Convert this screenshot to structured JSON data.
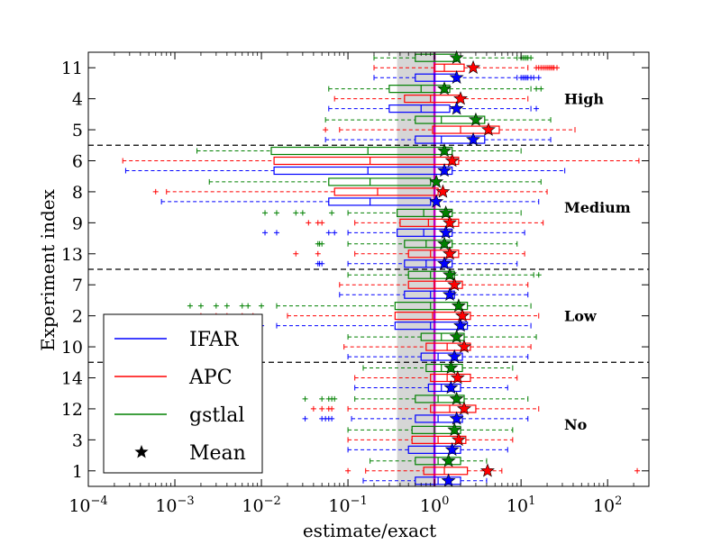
{
  "chart_data": {
    "type": "boxplot",
    "orientation": "horizontal",
    "xscale": "log",
    "xlim": [
      0.0001,
      300
    ],
    "xticks": [
      {
        "value": 0.0001,
        "base": "10",
        "exp": "−4"
      },
      {
        "value": 0.001,
        "base": "10",
        "exp": "−3"
      },
      {
        "value": 0.01,
        "base": "10",
        "exp": "−2"
      },
      {
        "value": 0.1,
        "base": "10",
        "exp": "−1"
      },
      {
        "value": 1,
        "base": "10",
        "exp": "0"
      },
      {
        "value": 10,
        "base": "10",
        "exp": "1"
      },
      {
        "value": 100,
        "base": "10",
        "exp": "2"
      }
    ],
    "xlabel": "estimate/exact",
    "ylabel": "Experiment index",
    "reference_line": {
      "x": 1,
      "color": "#c000c0"
    },
    "shaded_band": {
      "from": 0.37,
      "to": 1.0,
      "color": "#c8c8c8"
    },
    "experiments": [
      "11",
      "4",
      "5",
      "6",
      "8",
      "9",
      "13",
      "7",
      "2",
      "10",
      "14",
      "12",
      "3",
      "1"
    ],
    "groups": [
      {
        "label": "High",
        "after_index": 2,
        "experiments": [
          "11",
          "4",
          "5"
        ]
      },
      {
        "label": "Medium",
        "after_index": 6,
        "experiments": [
          "6",
          "8",
          "9",
          "13"
        ]
      },
      {
        "label": "Low",
        "after_index": 9,
        "experiments": [
          "7",
          "2",
          "10"
        ]
      },
      {
        "label": "No",
        "after_index": 13,
        "experiments": [
          "14",
          "12",
          "3",
          "1"
        ]
      }
    ],
    "series": [
      {
        "name": "IFAR",
        "color": "#0000ff"
      },
      {
        "name": "APC",
        "color": "#ff0000"
      },
      {
        "name": "gstlal",
        "color": "#008000"
      }
    ],
    "mean_marker_label": "Mean",
    "boxes": {
      "11": {
        "gstlal": {
          "wlo": 0.2,
          "q1": 0.6,
          "med": 1.0,
          "q3": 1.8,
          "whi": 9,
          "mean": 1.8,
          "fliers": [
            10,
            10.5,
            11,
            11.5,
            12,
            13
          ]
        },
        "APC": {
          "wlo": 0.2,
          "q1": 1.0,
          "med": 1.3,
          "q3": 2.2,
          "whi": 12,
          "mean": 2.8,
          "fliers": [
            15,
            16,
            17,
            18,
            19,
            20,
            21,
            22,
            23,
            24,
            26
          ]
        },
        "IFAR": {
          "wlo": 0.2,
          "q1": 0.6,
          "med": 1.0,
          "q3": 1.8,
          "whi": 9,
          "mean": 1.8,
          "fliers": [
            10,
            10.5,
            11,
            11.5,
            12,
            13,
            14,
            16
          ]
        }
      },
      "4": {
        "gstlal": {
          "wlo": 0.06,
          "q1": 0.3,
          "med": 0.7,
          "q3": 1.5,
          "whi": 13,
          "mean": 1.3,
          "fliers": [
            15,
            17
          ]
        },
        "APC": {
          "wlo": 0.07,
          "q1": 0.45,
          "med": 0.9,
          "q3": 1.9,
          "whi": 12,
          "mean": 2.0,
          "fliers": []
        },
        "IFAR": {
          "wlo": 0.06,
          "q1": 0.3,
          "med": 0.7,
          "q3": 1.5,
          "whi": 13,
          "mean": 1.8,
          "fliers": [
            15
          ]
        }
      },
      "5": {
        "gstlal": {
          "wlo": 0.055,
          "q1": 0.6,
          "med": 1.2,
          "q3": 3.8,
          "whi": 22,
          "mean": 3.0,
          "fliers": []
        },
        "APC": {
          "wlo": 0.08,
          "q1": 0.95,
          "med": 2.0,
          "q3": 5.6,
          "whi": 42,
          "mean": 4.2,
          "fliers": [
            0.055
          ]
        },
        "IFAR": {
          "wlo": 0.055,
          "q1": 0.6,
          "med": 1.2,
          "q3": 3.8,
          "whi": 22,
          "mean": 2.8,
          "fliers": []
        }
      },
      "6": {
        "gstlal": {
          "wlo": 0.0018,
          "q1": 0.013,
          "med": 0.17,
          "q3": 1.6,
          "whi": 10,
          "mean": 1.3,
          "fliers": []
        },
        "APC": {
          "wlo": 0.00025,
          "q1": 0.014,
          "med": 0.18,
          "q3": 1.9,
          "whi": 230,
          "mean": 1.6,
          "fliers": []
        },
        "IFAR": {
          "wlo": 0.00027,
          "q1": 0.014,
          "med": 0.17,
          "q3": 1.6,
          "whi": 32,
          "mean": 1.3,
          "fliers": []
        }
      },
      "8": {
        "gstlal": {
          "wlo": 0.0025,
          "q1": 0.06,
          "med": 0.18,
          "q3": 0.9,
          "whi": 17,
          "mean": 1.05,
          "fliers": []
        },
        "APC": {
          "wlo": 0.0008,
          "q1": 0.07,
          "med": 0.22,
          "q3": 1.1,
          "whi": 20,
          "mean": 1.25,
          "fliers": [
            0.0006
          ]
        },
        "IFAR": {
          "wlo": 0.0007,
          "q1": 0.06,
          "med": 0.18,
          "q3": 0.9,
          "whi": 16,
          "mean": 1.05,
          "fliers": []
        }
      },
      "9": {
        "gstlal": {
          "wlo": 0.1,
          "q1": 0.37,
          "med": 0.75,
          "q3": 1.6,
          "whi": 10,
          "mean": 1.35,
          "fliers": [
            0.011,
            0.015,
            0.025,
            0.03,
            0.065
          ]
        },
        "APC": {
          "wlo": 0.12,
          "q1": 0.4,
          "med": 0.85,
          "q3": 1.9,
          "whi": 18,
          "mean": 1.5,
          "fliers": [
            0.035,
            0.045,
            0.05
          ]
        },
        "IFAR": {
          "wlo": 0.1,
          "q1": 0.37,
          "med": 0.75,
          "q3": 1.6,
          "whi": 11,
          "mean": 1.35,
          "fliers": [
            0.011,
            0.015,
            0.06,
            0.07
          ]
        }
      },
      "13": {
        "gstlal": {
          "wlo": 0.1,
          "q1": 0.45,
          "med": 0.8,
          "q3": 1.6,
          "whi": 9,
          "mean": 1.3,
          "fliers": [
            0.045,
            0.047,
            0.05
          ]
        },
        "APC": {
          "wlo": 0.12,
          "q1": 0.5,
          "med": 0.9,
          "q3": 1.9,
          "whi": 11,
          "mean": 1.5,
          "fliers": [
            0.025,
            0.045
          ]
        },
        "IFAR": {
          "wlo": 0.1,
          "q1": 0.45,
          "med": 0.8,
          "q3": 1.6,
          "whi": 9,
          "mean": 1.3,
          "fliers": [
            0.045,
            0.047,
            0.05
          ]
        }
      },
      "7": {
        "gstlal": {
          "wlo": 0.1,
          "q1": 0.5,
          "med": 0.9,
          "q3": 1.7,
          "whi": 14,
          "mean": 1.5,
          "fliers": [
            16
          ]
        },
        "APC": {
          "wlo": 0.08,
          "q1": 0.5,
          "med": 1.0,
          "q3": 2.1,
          "whi": 12,
          "mean": 1.7,
          "fliers": []
        },
        "IFAR": {
          "wlo": 0.08,
          "q1": 0.45,
          "med": 0.9,
          "q3": 1.7,
          "whi": 12,
          "mean": 1.5,
          "fliers": []
        }
      },
      "2": {
        "gstlal": {
          "wlo": 0.015,
          "q1": 0.35,
          "med": 0.9,
          "q3": 2.4,
          "whi": 13,
          "mean": 1.9,
          "fliers": [
            0.0015,
            0.002,
            0.003,
            0.004,
            0.006,
            0.007,
            0.01
          ]
        },
        "APC": {
          "wlo": 0.02,
          "q1": 0.35,
          "med": 0.95,
          "q3": 2.6,
          "whi": 16,
          "mean": 2.1,
          "fliers": [
            0.002,
            0.003,
            0.004,
            0.006,
            0.008
          ]
        },
        "IFAR": {
          "wlo": 0.015,
          "q1": 0.35,
          "med": 0.9,
          "q3": 2.4,
          "whi": 13,
          "mean": 2.0,
          "fliers": [
            0.0015,
            0.002,
            0.003,
            0.004,
            0.006,
            0.007,
            0.01
          ]
        }
      },
      "10": {
        "gstlal": {
          "wlo": 0.1,
          "q1": 0.7,
          "med": 1.2,
          "q3": 2.2,
          "whi": 15,
          "mean": 1.8,
          "fliers": []
        },
        "APC": {
          "wlo": 0.09,
          "q1": 0.8,
          "med": 1.4,
          "q3": 2.6,
          "whi": 13,
          "mean": 2.2,
          "fliers": []
        },
        "IFAR": {
          "wlo": 0.1,
          "q1": 0.7,
          "med": 1.1,
          "q3": 2.1,
          "whi": 12,
          "mean": 1.7,
          "fliers": []
        }
      },
      "14": {
        "gstlal": {
          "wlo": 0.15,
          "q1": 0.8,
          "med": 1.2,
          "q3": 2.1,
          "whi": 8,
          "mean": 1.55,
          "fliers": []
        },
        "APC": {
          "wlo": 0.12,
          "q1": 0.9,
          "med": 1.4,
          "q3": 2.6,
          "whi": 9,
          "mean": 1.85,
          "fliers": []
        },
        "IFAR": {
          "wlo": 0.12,
          "q1": 0.85,
          "med": 1.2,
          "q3": 2.0,
          "whi": 7,
          "mean": 1.55,
          "fliers": []
        }
      },
      "12": {
        "gstlal": {
          "wlo": 0.12,
          "q1": 0.6,
          "med": 1.1,
          "q3": 2.2,
          "whi": 12,
          "mean": 1.8,
          "fliers": [
            0.032,
            0.05,
            0.06,
            0.065,
            0.07
          ]
        },
        "APC": {
          "wlo": 0.1,
          "q1": 0.9,
          "med": 1.5,
          "q3": 3.0,
          "whi": 16,
          "mean": 2.2,
          "fliers": [
            0.04,
            0.05,
            0.06,
            0.065
          ]
        },
        "IFAR": {
          "wlo": 0.11,
          "q1": 0.6,
          "med": 1.1,
          "q3": 2.1,
          "whi": 12,
          "mean": 1.8,
          "fliers": [
            0.032,
            0.05,
            0.055,
            0.06,
            0.065
          ]
        }
      },
      "3": {
        "gstlal": {
          "wlo": 0.1,
          "q1": 0.55,
          "med": 1.0,
          "q3": 2.0,
          "whi": 8,
          "mean": 1.7,
          "fliers": []
        },
        "APC": {
          "wlo": 0.1,
          "q1": 0.55,
          "med": 1.1,
          "q3": 2.3,
          "whi": 8,
          "mean": 1.9,
          "fliers": []
        },
        "IFAR": {
          "wlo": 0.1,
          "q1": 0.5,
          "med": 1.0,
          "q3": 2.0,
          "whi": 7,
          "mean": 1.6,
          "fliers": []
        }
      },
      "1": {
        "gstlal": {
          "wlo": 0.18,
          "q1": 0.6,
          "med": 1.1,
          "q3": 2.0,
          "whi": 4,
          "mean": 1.45,
          "fliers": []
        },
        "APC": {
          "wlo": 0.16,
          "q1": 0.75,
          "med": 1.3,
          "q3": 2.4,
          "whi": 6,
          "mean": 4.1,
          "fliers": [
            0.1,
            220
          ]
        },
        "IFAR": {
          "wlo": 0.15,
          "q1": 0.6,
          "med": 1.1,
          "q3": 2.0,
          "whi": 4,
          "mean": 1.45,
          "fliers": []
        }
      }
    }
  }
}
